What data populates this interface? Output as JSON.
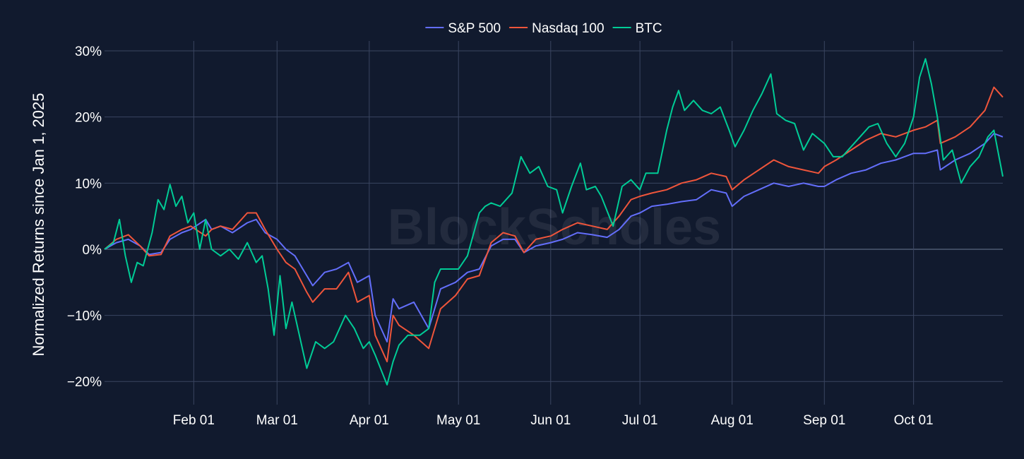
{
  "chart_data": {
    "type": "line",
    "ylabel": "Normalized Returns since Jan 1, 2025",
    "y_unit": "%",
    "ylim": [
      -23.5,
      31.5
    ],
    "y_ticks": [
      30,
      20,
      10,
      0,
      -10,
      -20
    ],
    "y_tick_labels": [
      "30%",
      "20%",
      "10%",
      "0%",
      "−10%",
      "−20%"
    ],
    "x_range": [
      "2025-01-02",
      "2025-10-31"
    ],
    "x_ticks": [
      "2025-02-01",
      "2025-03-01",
      "2025-04-01",
      "2025-05-01",
      "2025-06-01",
      "2025-07-01",
      "2025-08-01",
      "2025-09-01",
      "2025-10-01"
    ],
    "x_tick_labels": [
      "Feb 01",
      "Mar 01",
      "Apr 01",
      "May 01",
      "Jun 01",
      "Jul 01",
      "Aug 01",
      "Sep 01",
      "Oct 01"
    ],
    "watermark": "BlockScholes",
    "legend_position": "top-center",
    "series": [
      {
        "name": "S&P 500",
        "color": "#636efa",
        "points": [
          [
            "2025-01-02",
            0
          ],
          [
            "2025-01-06",
            1
          ],
          [
            "2025-01-10",
            1.5
          ],
          [
            "2025-01-14",
            0.5
          ],
          [
            "2025-01-17",
            -0.8
          ],
          [
            "2025-01-21",
            -0.5
          ],
          [
            "2025-01-24",
            1.5
          ],
          [
            "2025-01-28",
            2.5
          ],
          [
            "2025-01-31",
            3
          ],
          [
            "2025-02-05",
            4.5
          ],
          [
            "2025-02-07",
            3
          ],
          [
            "2025-02-10",
            3.5
          ],
          [
            "2025-02-14",
            2.5
          ],
          [
            "2025-02-19",
            4
          ],
          [
            "2025-02-22",
            4.5
          ],
          [
            "2025-02-25",
            2.5
          ],
          [
            "2025-03-01",
            1.5
          ],
          [
            "2025-03-04",
            0
          ],
          [
            "2025-03-07",
            -1
          ],
          [
            "2025-03-11",
            -4
          ],
          [
            "2025-03-13",
            -5.5
          ],
          [
            "2025-03-17",
            -3.5
          ],
          [
            "2025-03-21",
            -3
          ],
          [
            "2025-03-25",
            -2
          ],
          [
            "2025-03-28",
            -5
          ],
          [
            "2025-04-01",
            -4
          ],
          [
            "2025-04-03",
            -10
          ],
          [
            "2025-04-07",
            -14
          ],
          [
            "2025-04-09",
            -7.5
          ],
          [
            "2025-04-11",
            -9
          ],
          [
            "2025-04-16",
            -8
          ],
          [
            "2025-04-21",
            -12
          ],
          [
            "2025-04-25",
            -6
          ],
          [
            "2025-04-30",
            -5
          ],
          [
            "2025-05-04",
            -3.5
          ],
          [
            "2025-05-08",
            -3
          ],
          [
            "2025-05-12",
            0.5
          ],
          [
            "2025-05-16",
            1.5
          ],
          [
            "2025-05-20",
            1.5
          ],
          [
            "2025-05-23",
            -0.5
          ],
          [
            "2025-05-27",
            0.5
          ],
          [
            "2025-06-01",
            1
          ],
          [
            "2025-06-05",
            1.5
          ],
          [
            "2025-06-10",
            2.5
          ],
          [
            "2025-06-15",
            2.2
          ],
          [
            "2025-06-20",
            1.8
          ],
          [
            "2025-06-24",
            3
          ],
          [
            "2025-06-28",
            5
          ],
          [
            "2025-07-01",
            5.5
          ],
          [
            "2025-07-05",
            6.5
          ],
          [
            "2025-07-10",
            6.8
          ],
          [
            "2025-07-15",
            7.2
          ],
          [
            "2025-07-20",
            7.5
          ],
          [
            "2025-07-25",
            9
          ],
          [
            "2025-07-30",
            8.5
          ],
          [
            "2025-08-01",
            6.5
          ],
          [
            "2025-08-05",
            8
          ],
          [
            "2025-08-10",
            9
          ],
          [
            "2025-08-15",
            10
          ],
          [
            "2025-08-20",
            9.5
          ],
          [
            "2025-08-25",
            10
          ],
          [
            "2025-08-30",
            9.5
          ],
          [
            "2025-09-01",
            9.5
          ],
          [
            "2025-09-05",
            10.5
          ],
          [
            "2025-09-10",
            11.5
          ],
          [
            "2025-09-15",
            12
          ],
          [
            "2025-09-20",
            13
          ],
          [
            "2025-09-25",
            13.5
          ],
          [
            "2025-10-01",
            14.5
          ],
          [
            "2025-10-05",
            14.5
          ],
          [
            "2025-10-09",
            15
          ],
          [
            "2025-10-10",
            12
          ],
          [
            "2025-10-15",
            13.5
          ],
          [
            "2025-10-20",
            14.5
          ],
          [
            "2025-10-25",
            16
          ],
          [
            "2025-10-28",
            17.5
          ],
          [
            "2025-10-31",
            17
          ]
        ]
      },
      {
        "name": "Nasdaq 100",
        "color": "#ef553b",
        "points": [
          [
            "2025-01-02",
            0
          ],
          [
            "2025-01-06",
            1.5
          ],
          [
            "2025-01-10",
            2.2
          ],
          [
            "2025-01-14",
            0.5
          ],
          [
            "2025-01-17",
            -1
          ],
          [
            "2025-01-21",
            -0.8
          ],
          [
            "2025-01-24",
            2
          ],
          [
            "2025-01-28",
            3
          ],
          [
            "2025-01-31",
            3.5
          ],
          [
            "2025-02-05",
            2
          ],
          [
            "2025-02-07",
            3
          ],
          [
            "2025-02-10",
            3.5
          ],
          [
            "2025-02-14",
            3
          ],
          [
            "2025-02-19",
            5.5
          ],
          [
            "2025-02-22",
            5.5
          ],
          [
            "2025-02-25",
            3
          ],
          [
            "2025-03-01",
            0
          ],
          [
            "2025-03-04",
            -2
          ],
          [
            "2025-03-07",
            -3
          ],
          [
            "2025-03-11",
            -6.5
          ],
          [
            "2025-03-13",
            -8
          ],
          [
            "2025-03-17",
            -6
          ],
          [
            "2025-03-21",
            -6
          ],
          [
            "2025-03-25",
            -3.5
          ],
          [
            "2025-03-28",
            -8
          ],
          [
            "2025-04-01",
            -7
          ],
          [
            "2025-04-03",
            -13
          ],
          [
            "2025-04-07",
            -17
          ],
          [
            "2025-04-09",
            -10
          ],
          [
            "2025-04-11",
            -11.5
          ],
          [
            "2025-04-16",
            -13
          ],
          [
            "2025-04-21",
            -15
          ],
          [
            "2025-04-25",
            -9
          ],
          [
            "2025-04-30",
            -7
          ],
          [
            "2025-05-04",
            -4.5
          ],
          [
            "2025-05-08",
            -4
          ],
          [
            "2025-05-12",
            1
          ],
          [
            "2025-05-16",
            2.5
          ],
          [
            "2025-05-20",
            2
          ],
          [
            "2025-05-23",
            -0.5
          ],
          [
            "2025-05-27",
            1.5
          ],
          [
            "2025-06-01",
            2
          ],
          [
            "2025-06-05",
            3
          ],
          [
            "2025-06-10",
            4
          ],
          [
            "2025-06-15",
            3.5
          ],
          [
            "2025-06-20",
            3
          ],
          [
            "2025-06-24",
            5
          ],
          [
            "2025-06-28",
            7.5
          ],
          [
            "2025-07-01",
            8
          ],
          [
            "2025-07-05",
            8.5
          ],
          [
            "2025-07-10",
            9
          ],
          [
            "2025-07-15",
            10
          ],
          [
            "2025-07-20",
            10.5
          ],
          [
            "2025-07-25",
            11.5
          ],
          [
            "2025-07-30",
            11
          ],
          [
            "2025-08-01",
            9
          ],
          [
            "2025-08-05",
            10.5
          ],
          [
            "2025-08-10",
            12
          ],
          [
            "2025-08-15",
            13.5
          ],
          [
            "2025-08-20",
            12.5
          ],
          [
            "2025-08-25",
            12
          ],
          [
            "2025-08-30",
            11.5
          ],
          [
            "2025-09-01",
            12.5
          ],
          [
            "2025-09-05",
            13.5
          ],
          [
            "2025-09-10",
            15
          ],
          [
            "2025-09-15",
            16.5
          ],
          [
            "2025-09-20",
            17.5
          ],
          [
            "2025-09-25",
            17
          ],
          [
            "2025-10-01",
            18
          ],
          [
            "2025-10-05",
            18.5
          ],
          [
            "2025-10-09",
            19.5
          ],
          [
            "2025-10-10",
            16
          ],
          [
            "2025-10-15",
            17
          ],
          [
            "2025-10-20",
            18.5
          ],
          [
            "2025-10-25",
            21
          ],
          [
            "2025-10-28",
            24.5
          ],
          [
            "2025-10-31",
            23
          ]
        ]
      },
      {
        "name": "BTC",
        "color": "#00cc96",
        "points": [
          [
            "2025-01-02",
            0
          ],
          [
            "2025-01-05",
            1
          ],
          [
            "2025-01-07",
            4.5
          ],
          [
            "2025-01-09",
            -1
          ],
          [
            "2025-01-11",
            -5
          ],
          [
            "2025-01-13",
            -2
          ],
          [
            "2025-01-15",
            -2.5
          ],
          [
            "2025-01-18",
            2.5
          ],
          [
            "2025-01-20",
            7.5
          ],
          [
            "2025-01-22",
            6
          ],
          [
            "2025-01-24",
            9.8
          ],
          [
            "2025-01-26",
            6.5
          ],
          [
            "2025-01-28",
            8
          ],
          [
            "2025-01-30",
            4
          ],
          [
            "2025-02-01",
            5.5
          ],
          [
            "2025-02-03",
            0
          ],
          [
            "2025-02-05",
            4.5
          ],
          [
            "2025-02-07",
            0
          ],
          [
            "2025-02-10",
            -1
          ],
          [
            "2025-02-13",
            0
          ],
          [
            "2025-02-16",
            -1.5
          ],
          [
            "2025-02-19",
            1
          ],
          [
            "2025-02-22",
            -2
          ],
          [
            "2025-02-24",
            -1
          ],
          [
            "2025-02-26",
            -6
          ],
          [
            "2025-02-28",
            -13
          ],
          [
            "2025-03-02",
            -4
          ],
          [
            "2025-03-04",
            -12
          ],
          [
            "2025-03-06",
            -8
          ],
          [
            "2025-03-08",
            -12
          ],
          [
            "2025-03-11",
            -18
          ],
          [
            "2025-03-14",
            -14
          ],
          [
            "2025-03-17",
            -15
          ],
          [
            "2025-03-20",
            -14
          ],
          [
            "2025-03-24",
            -10
          ],
          [
            "2025-03-27",
            -12
          ],
          [
            "2025-03-30",
            -15
          ],
          [
            "2025-04-01",
            -14
          ],
          [
            "2025-04-03",
            -16
          ],
          [
            "2025-04-07",
            -20.5
          ],
          [
            "2025-04-09",
            -17
          ],
          [
            "2025-04-11",
            -14.5
          ],
          [
            "2025-04-14",
            -13
          ],
          [
            "2025-04-18",
            -13
          ],
          [
            "2025-04-21",
            -12
          ],
          [
            "2025-04-23",
            -5
          ],
          [
            "2025-04-25",
            -3
          ],
          [
            "2025-04-28",
            -3
          ],
          [
            "2025-05-01",
            -3
          ],
          [
            "2025-05-04",
            -1
          ],
          [
            "2025-05-08",
            5.5
          ],
          [
            "2025-05-10",
            6.5
          ],
          [
            "2025-05-12",
            7
          ],
          [
            "2025-05-15",
            6.5
          ],
          [
            "2025-05-19",
            8.5
          ],
          [
            "2025-05-22",
            14
          ],
          [
            "2025-05-25",
            11.5
          ],
          [
            "2025-05-28",
            12.5
          ],
          [
            "2025-05-31",
            9.5
          ],
          [
            "2025-06-03",
            9
          ],
          [
            "2025-06-05",
            5.5
          ],
          [
            "2025-06-08",
            9.5
          ],
          [
            "2025-06-11",
            13
          ],
          [
            "2025-06-13",
            9
          ],
          [
            "2025-06-16",
            9.5
          ],
          [
            "2025-06-18",
            8
          ],
          [
            "2025-06-22",
            3.5
          ],
          [
            "2025-06-25",
            9.5
          ],
          [
            "2025-06-28",
            10.5
          ],
          [
            "2025-07-01",
            9
          ],
          [
            "2025-07-03",
            11.5
          ],
          [
            "2025-07-07",
            11.5
          ],
          [
            "2025-07-10",
            18
          ],
          [
            "2025-07-12",
            21.5
          ],
          [
            "2025-07-14",
            24
          ],
          [
            "2025-07-16",
            21
          ],
          [
            "2025-07-19",
            22.5
          ],
          [
            "2025-07-22",
            21
          ],
          [
            "2025-07-25",
            20.5
          ],
          [
            "2025-07-28",
            21.5
          ],
          [
            "2025-07-31",
            18
          ],
          [
            "2025-08-02",
            15.5
          ],
          [
            "2025-08-05",
            18
          ],
          [
            "2025-08-08",
            21
          ],
          [
            "2025-08-11",
            23.5
          ],
          [
            "2025-08-14",
            26.5
          ],
          [
            "2025-08-16",
            20.5
          ],
          [
            "2025-08-19",
            19.5
          ],
          [
            "2025-08-22",
            19
          ],
          [
            "2025-08-25",
            15
          ],
          [
            "2025-08-28",
            17.5
          ],
          [
            "2025-09-01",
            16
          ],
          [
            "2025-09-04",
            14
          ],
          [
            "2025-09-07",
            14
          ],
          [
            "2025-09-10",
            15.5
          ],
          [
            "2025-09-13",
            17
          ],
          [
            "2025-09-16",
            18.5
          ],
          [
            "2025-09-19",
            19
          ],
          [
            "2025-09-22",
            16
          ],
          [
            "2025-09-25",
            14
          ],
          [
            "2025-09-28",
            16
          ],
          [
            "2025-10-01",
            20
          ],
          [
            "2025-10-03",
            26
          ],
          [
            "2025-10-05",
            28.8
          ],
          [
            "2025-10-07",
            25
          ],
          [
            "2025-10-09",
            20
          ],
          [
            "2025-10-11",
            13.5
          ],
          [
            "2025-10-14",
            15
          ],
          [
            "2025-10-17",
            10
          ],
          [
            "2025-10-20",
            12.5
          ],
          [
            "2025-10-23",
            14
          ],
          [
            "2025-10-26",
            17
          ],
          [
            "2025-10-28",
            18
          ],
          [
            "2025-10-31",
            11
          ]
        ]
      }
    ]
  }
}
